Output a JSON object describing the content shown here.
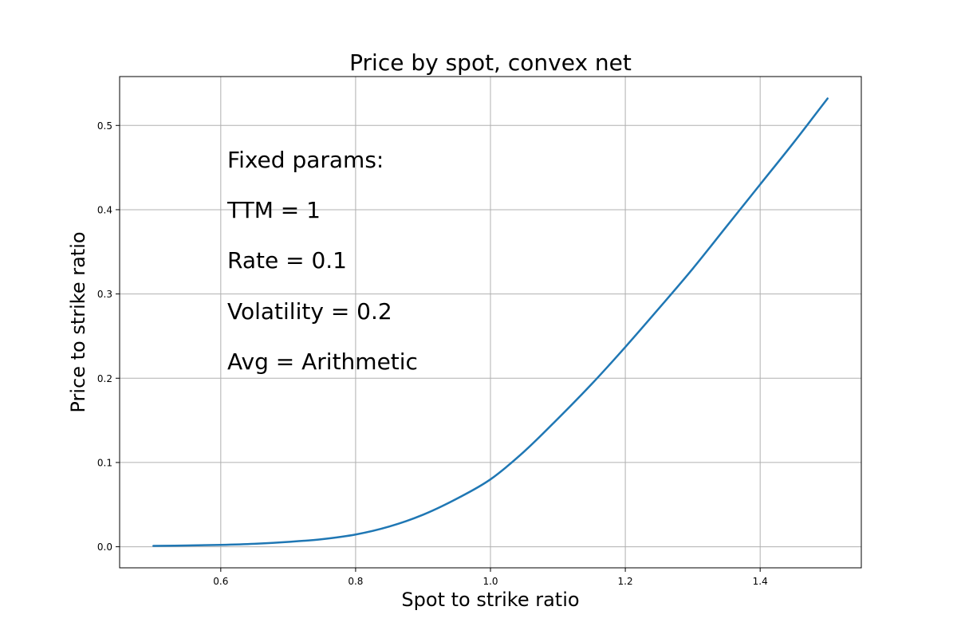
{
  "chart_data": {
    "type": "line",
    "title": "Price by spot, convex net",
    "xlabel": "Spot to strike ratio",
    "ylabel": "Price to strike ratio",
    "xlim": [
      0.45,
      1.55
    ],
    "ylim": [
      -0.025,
      0.558
    ],
    "xticks": [
      0.6,
      0.8,
      1.0,
      1.2,
      1.4
    ],
    "xtick_labels": [
      "0.6",
      "0.8",
      "1.0",
      "1.2",
      "1.4"
    ],
    "yticks": [
      0.0,
      0.1,
      0.2,
      0.3,
      0.4,
      0.5
    ],
    "ytick_labels": [
      "0.0",
      "0.1",
      "0.2",
      "0.3",
      "0.4",
      "0.5"
    ],
    "grid": true,
    "color": "#1f77b4",
    "annotations": [
      "Fixed params:",
      "TTM = 1",
      "Rate = 0.1",
      "Volatility = 0.2",
      "Avg = Arithmetic"
    ],
    "series": [
      {
        "x": [
          0.5,
          0.55,
          0.6,
          0.65,
          0.7,
          0.75,
          0.8,
          0.85,
          0.9,
          0.95,
          1.0,
          1.05,
          1.1,
          1.15,
          1.2,
          1.25,
          1.3,
          1.35,
          1.4,
          1.45,
          1.5
        ],
        "values": [
          0.001,
          0.0015,
          0.0022,
          0.0035,
          0.0058,
          0.009,
          0.0145,
          0.024,
          0.038,
          0.057,
          0.08,
          0.113,
          0.152,
          0.193,
          0.237,
          0.283,
          0.33,
          0.38,
          0.43,
          0.48,
          0.532
        ]
      }
    ]
  }
}
